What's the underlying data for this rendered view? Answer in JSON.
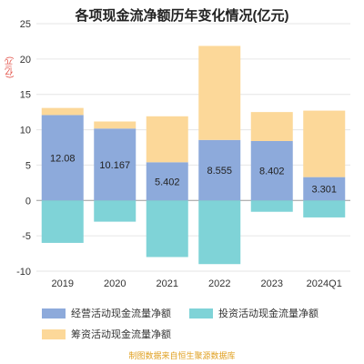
{
  "title": "各项现金流净额历年变化情况(亿元)",
  "unit_label": "(亿元)",
  "footer": "制图数据来自恒生聚源数据库",
  "colors": {
    "operating": "#8daadb",
    "investing": "#7fd3d7",
    "financing": "#fcd899",
    "axis_text": "#333333",
    "grid": "#e6e6e6",
    "unit_text": "#e0463c"
  },
  "legend": [
    {
      "key": "operating",
      "label": "经营活动现金流量净额"
    },
    {
      "key": "investing",
      "label": "投资活动现金流量净额"
    },
    {
      "key": "financing",
      "label": "筹资活动现金流量净额"
    }
  ],
  "chart_data": {
    "type": "bar",
    "stacked": true,
    "title": "各项现金流净额历年变化情况(亿元)",
    "categories": [
      "2019",
      "2020",
      "2021",
      "2022",
      "2023",
      "2024Q1"
    ],
    "series": [
      {
        "name": "经营活动现金流量净额",
        "key": "operating",
        "values": [
          12.08,
          10.167,
          5.402,
          8.555,
          8.402,
          3.301
        ]
      },
      {
        "name": "投资活动现金流量净额",
        "key": "investing",
        "values": [
          -6.0,
          -3.0,
          -8.0,
          -9.0,
          -1.6,
          -2.4
        ]
      },
      {
        "name": "筹资活动现金流量净额",
        "key": "financing",
        "values": [
          1.0,
          1.0,
          6.5,
          13.3,
          4.1,
          9.4
        ]
      }
    ],
    "data_labels": [
      "12.08",
      "10.167",
      "5.402",
      "8.555",
      "8.402",
      "3.301"
    ],
    "ylim": [
      -10,
      25
    ],
    "yticks": [
      -10,
      -5,
      0,
      5,
      10,
      15,
      20,
      25
    ],
    "ylabel": "(亿元)",
    "grid": true,
    "legend_position": "bottom"
  }
}
